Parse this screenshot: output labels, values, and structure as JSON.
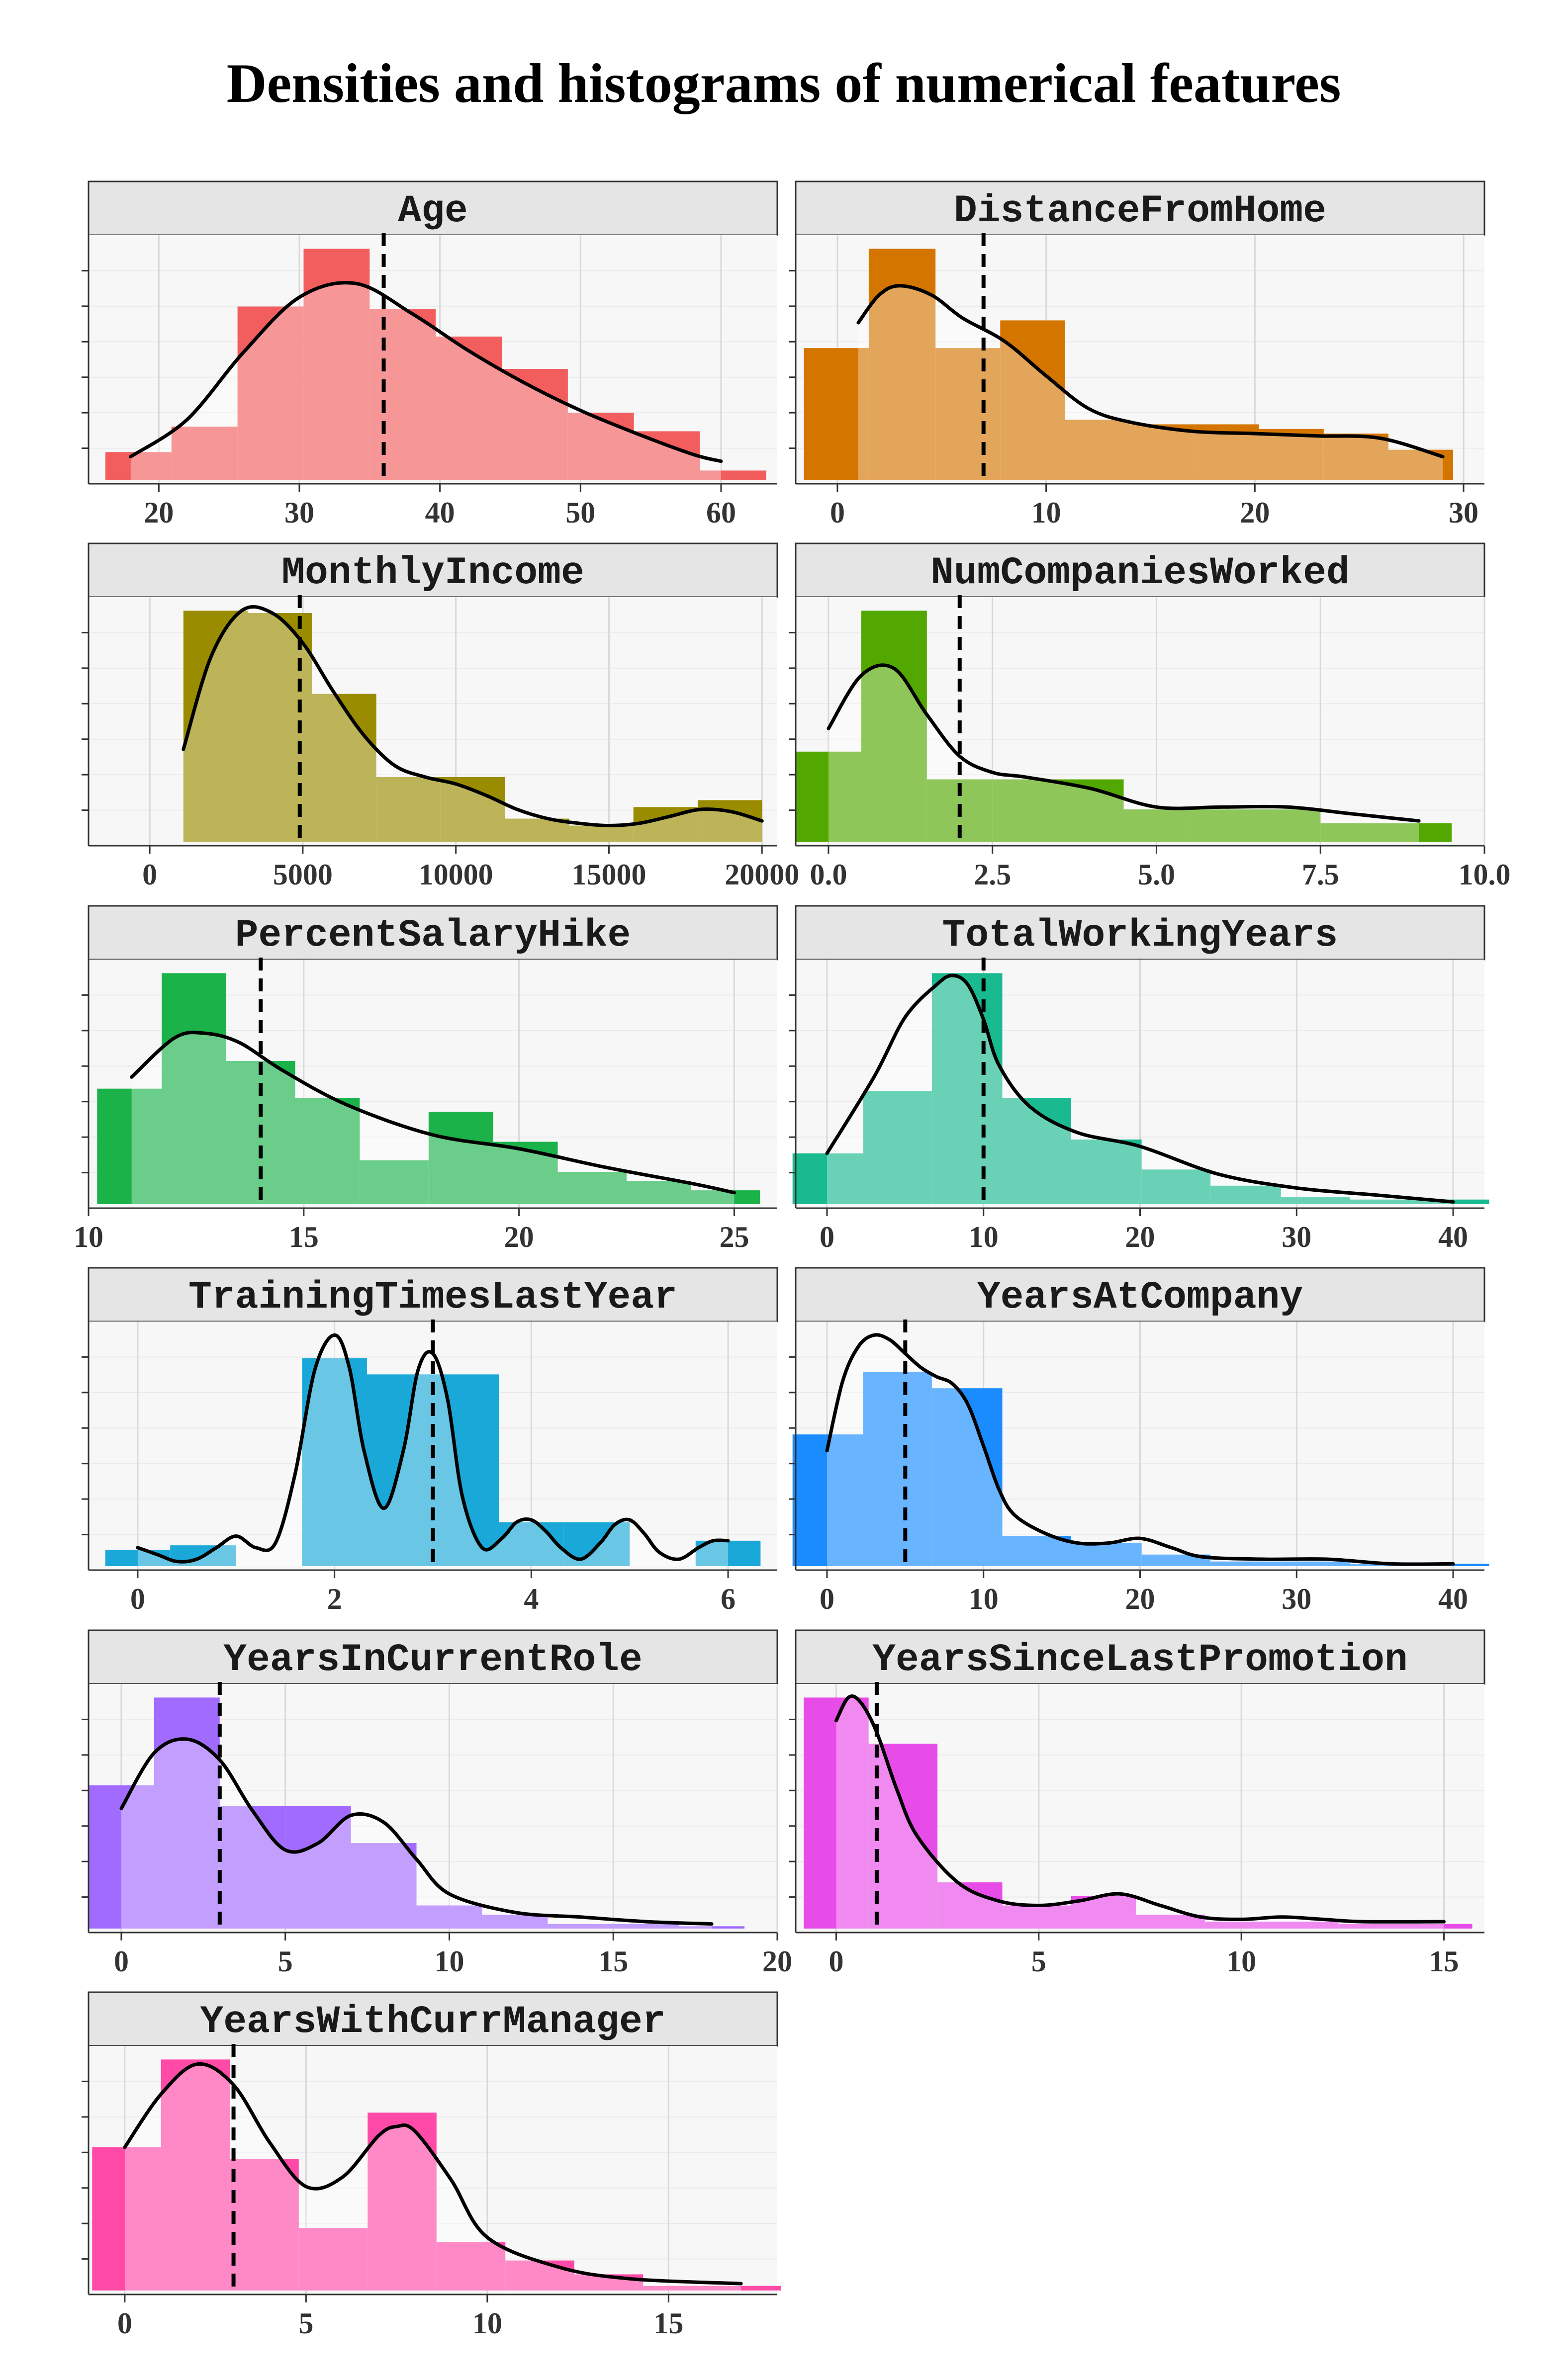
{
  "title": "Densities and histograms of numerical features",
  "colors": {
    "panel_background": "#F7F7F7",
    "strip_background": "#E5E5E5",
    "gridline": "#D9D9D9",
    "density_line": "#000000",
    "median_line": "#000000"
  },
  "chart_data": [
    {
      "type": "histogram",
      "title": "Age",
      "color": "#F25E5E",
      "xlim": [
        15,
        64
      ],
      "x_ticks": [
        20,
        30,
        40,
        50,
        60
      ],
      "x_tick_labels": [
        "20",
        "30",
        "40",
        "50",
        "60"
      ],
      "median": 36,
      "bins": {
        "edges": [
          16.2,
          20.9,
          25.6,
          30.3,
          35.0,
          39.7,
          44.4,
          49.1,
          53.8,
          58.5,
          63.2
        ],
        "values": [
          0.12,
          0.23,
          0.75,
          1.0,
          0.74,
          0.62,
          0.48,
          0.29,
          0.21,
          0.04
        ]
      },
      "density": {
        "x": [
          18,
          22,
          26,
          30,
          34,
          38,
          42,
          46,
          50,
          54,
          58,
          60
        ],
        "y": [
          0.1,
          0.26,
          0.55,
          0.79,
          0.85,
          0.72,
          0.56,
          0.42,
          0.3,
          0.2,
          0.11,
          0.08
        ]
      }
    },
    {
      "type": "histogram",
      "title": "DistanceFromHome",
      "color": "#D47500",
      "xlim": [
        -2,
        31
      ],
      "x_ticks": [
        0,
        10,
        20,
        30
      ],
      "x_tick_labels": [
        "0",
        "10",
        "20",
        "30"
      ],
      "median": 7,
      "bins": {
        "edges": [
          -1.6,
          1.5,
          4.7,
          7.8,
          10.9,
          14.0,
          17.1,
          20.2,
          23.3,
          26.4,
          29.5
        ],
        "values": [
          0.57,
          1.0,
          0.57,
          0.69,
          0.26,
          0.24,
          0.24,
          0.22,
          0.2,
          0.13
        ]
      },
      "density": {
        "x": [
          1.0,
          2.0,
          3.0,
          4.5,
          6,
          8,
          10,
          12,
          14,
          17,
          20,
          23,
          26,
          29
        ],
        "y": [
          0.68,
          0.8,
          0.84,
          0.8,
          0.7,
          0.6,
          0.45,
          0.31,
          0.25,
          0.21,
          0.2,
          0.19,
          0.18,
          0.1
        ]
      }
    },
    {
      "type": "histogram",
      "title": "MonthlyIncome",
      "color": "#9A8C00",
      "xlim": [
        -2000,
        20500
      ],
      "x_ticks": [
        0,
        5000,
        10000,
        15000,
        20000
      ],
      "x_tick_labels": [
        "0",
        "5000",
        "10000",
        "15000",
        "20000"
      ],
      "median": 4900,
      "bins": {
        "edges": [
          -1000,
          1100,
          3200,
          5300,
          7400,
          9500,
          11600,
          13700,
          15800,
          17900,
          20000
        ],
        "values": [
          0.0,
          1.0,
          0.99,
          0.64,
          0.28,
          0.28,
          0.1,
          0.07,
          0.15,
          0.18
        ]
      },
      "density": {
        "x": [
          1100,
          2000,
          3000,
          4000,
          5000,
          6000,
          7000,
          8000,
          9000,
          10000,
          11000,
          12000,
          13000,
          14000,
          15000,
          16000,
          17000,
          18000,
          19000,
          20000
        ],
        "y": [
          0.4,
          0.8,
          1.0,
          0.99,
          0.86,
          0.65,
          0.46,
          0.33,
          0.28,
          0.25,
          0.2,
          0.14,
          0.1,
          0.08,
          0.07,
          0.08,
          0.11,
          0.14,
          0.13,
          0.09
        ]
      }
    },
    {
      "type": "histogram",
      "title": "NumCompaniesWorked",
      "color": "#52A800",
      "xlim": [
        -0.5,
        10
      ],
      "x_ticks": [
        0.0,
        2.5,
        5.0,
        7.5,
        10.0
      ],
      "x_tick_labels": [
        "0.0",
        "2.5",
        "5.0",
        "7.5",
        "10.0"
      ],
      "median": 2,
      "bins": {
        "edges": [
          -0.5,
          0.5,
          1.5,
          2.5,
          3.5,
          4.5,
          5.5,
          6.5,
          7.5,
          8.5,
          9.5
        ],
        "values": [
          0.39,
          1.0,
          0.27,
          0.27,
          0.27,
          0.14,
          0.14,
          0.14,
          0.08,
          0.08
        ]
      },
      "density": {
        "x": [
          0,
          0.5,
          1.0,
          1.5,
          2.0,
          2.5,
          3.0,
          4.0,
          5.0,
          6.0,
          7.0,
          8.0,
          9.0
        ],
        "y": [
          0.49,
          0.72,
          0.75,
          0.55,
          0.37,
          0.3,
          0.28,
          0.23,
          0.15,
          0.15,
          0.15,
          0.12,
          0.09
        ]
      }
    },
    {
      "type": "histogram",
      "title": "PercentSalaryHike",
      "color": "#1BB24A",
      "xlim": [
        10,
        26
      ],
      "x_ticks": [
        10,
        15,
        20,
        25
      ],
      "x_tick_labels": [
        "10",
        "15",
        "20",
        "25"
      ],
      "median": 14,
      "bins": {
        "edges": [
          10.2,
          11.7,
          13.2,
          14.8,
          16.3,
          17.9,
          19.4,
          20.9,
          22.5,
          24.0,
          25.6
        ],
        "values": [
          0.5,
          1.0,
          0.62,
          0.46,
          0.19,
          0.4,
          0.27,
          0.14,
          0.1,
          0.06
        ]
      },
      "density": {
        "x": [
          11,
          12,
          12.7,
          13.5,
          14.5,
          16,
          18,
          20,
          22,
          24,
          25
        ],
        "y": [
          0.55,
          0.72,
          0.74,
          0.7,
          0.58,
          0.43,
          0.3,
          0.24,
          0.16,
          0.09,
          0.05
        ]
      }
    },
    {
      "type": "histogram",
      "title": "TotalWorkingYears",
      "color": "#1ABA90",
      "xlim": [
        -2,
        42
      ],
      "x_ticks": [
        0,
        10,
        20,
        30,
        40
      ],
      "x_tick_labels": [
        "0",
        "10",
        "20",
        "30",
        "40"
      ],
      "median": 10,
      "bins": {
        "edges": [
          -2.2,
          2.3,
          6.7,
          11.2,
          15.6,
          20.1,
          24.5,
          29.0,
          33.4,
          37.9,
          42.3
        ],
        "values": [
          0.22,
          0.49,
          1.0,
          0.46,
          0.28,
          0.15,
          0.08,
          0.03,
          0.02,
          0.02
        ]
      },
      "density": {
        "x": [
          0,
          3,
          5,
          7,
          8,
          9,
          10,
          11,
          13,
          16,
          20,
          25,
          30,
          35,
          40
        ],
        "y": [
          0.22,
          0.55,
          0.81,
          0.95,
          0.99,
          0.95,
          0.8,
          0.6,
          0.42,
          0.31,
          0.25,
          0.13,
          0.07,
          0.04,
          0.01
        ]
      }
    },
    {
      "type": "histogram",
      "title": "TrainingTimesLastYear",
      "color": "#1AA8D8",
      "xlim": [
        -0.5,
        6.5
      ],
      "x_ticks": [
        0,
        2,
        4,
        6
      ],
      "x_tick_labels": [
        "0",
        "2",
        "4",
        "6"
      ],
      "median": 3,
      "bins": {
        "edges": [
          -0.33,
          0.33,
          1.0,
          1.67,
          2.33,
          3.0,
          3.67,
          4.33,
          5.0,
          5.67,
          6.33
        ],
        "values": [
          0.07,
          0.09,
          0.0,
          0.9,
          0.83,
          0.83,
          0.19,
          0.19,
          0.0,
          0.11
        ]
      },
      "density": {
        "x": [
          0,
          0.2,
          0.4,
          0.6,
          0.8,
          1.0,
          1.2,
          1.4,
          1.6,
          1.8,
          2.0,
          2.15,
          2.3,
          2.5,
          2.7,
          2.85,
          3.0,
          3.15,
          3.3,
          3.5,
          3.7,
          3.85,
          4.0,
          4.15,
          4.3,
          4.5,
          4.7,
          4.85,
          5.0,
          5.15,
          5.3,
          5.5,
          5.7,
          5.85,
          6.0
        ],
        "y": [
          0.08,
          0.05,
          0.02,
          0.03,
          0.08,
          0.13,
          0.08,
          0.1,
          0.4,
          0.85,
          1.0,
          0.86,
          0.5,
          0.25,
          0.5,
          0.85,
          0.92,
          0.72,
          0.3,
          0.08,
          0.12,
          0.19,
          0.2,
          0.15,
          0.08,
          0.03,
          0.1,
          0.18,
          0.2,
          0.14,
          0.06,
          0.03,
          0.08,
          0.11,
          0.11
        ]
      }
    },
    {
      "type": "histogram",
      "title": "YearsAtCompany",
      "color": "#1A8CFF",
      "xlim": [
        -2,
        42
      ],
      "x_ticks": [
        0,
        10,
        20,
        30,
        40
      ],
      "x_tick_labels": [
        "0",
        "10",
        "20",
        "30",
        "40"
      ],
      "median": 5,
      "bins": {
        "edges": [
          -2.2,
          2.3,
          6.7,
          11.2,
          15.6,
          20.1,
          24.5,
          29.0,
          33.4,
          37.9,
          42.3
        ],
        "values": [
          0.57,
          0.84,
          0.77,
          0.13,
          0.1,
          0.05,
          0.02,
          0.02,
          0.01,
          0.01
        ]
      },
      "density": {
        "x": [
          0,
          1,
          2,
          3,
          4,
          5,
          6,
          7,
          8,
          9,
          10,
          11,
          12,
          14,
          16,
          18,
          20,
          22,
          24,
          28,
          32,
          36,
          40
        ],
        "y": [
          0.5,
          0.8,
          0.95,
          1.0,
          0.98,
          0.92,
          0.86,
          0.82,
          0.79,
          0.7,
          0.52,
          0.33,
          0.22,
          0.14,
          0.1,
          0.1,
          0.12,
          0.08,
          0.04,
          0.03,
          0.03,
          0.01,
          0.01
        ]
      }
    },
    {
      "type": "histogram",
      "title": "YearsInCurrentRole",
      "color": "#A26BFF",
      "xlim": [
        -1,
        20
      ],
      "x_ticks": [
        0,
        5,
        10,
        15,
        20
      ],
      "x_tick_labels": [
        "0",
        "5",
        "10",
        "15",
        "20"
      ],
      "median": 3,
      "bins": {
        "edges": [
          -1.0,
          1.0,
          3.0,
          5.0,
          7.0,
          9.0,
          11.0,
          13.0,
          15.0,
          17.0,
          19.0
        ],
        "values": [
          0.62,
          1.0,
          0.53,
          0.53,
          0.37,
          0.1,
          0.06,
          0.02,
          0.02,
          0.01
        ]
      },
      "density": {
        "x": [
          0,
          1,
          2,
          3,
          4,
          5,
          6,
          7,
          8,
          9,
          10,
          12,
          14,
          16,
          18
        ],
        "y": [
          0.52,
          0.76,
          0.82,
          0.73,
          0.51,
          0.34,
          0.37,
          0.49,
          0.46,
          0.3,
          0.15,
          0.07,
          0.05,
          0.03,
          0.02
        ]
      }
    },
    {
      "type": "histogram",
      "title": "YearsSinceLastPromotion",
      "color": "#E84CE8",
      "xlim": [
        -1,
        16
      ],
      "x_ticks": [
        0,
        5,
        10,
        15
      ],
      "x_tick_labels": [
        "0",
        "5",
        "10",
        "15"
      ],
      "median": 1,
      "bins": {
        "edges": [
          -0.8,
          0.8,
          2.5,
          4.1,
          5.8,
          7.4,
          9.1,
          10.7,
          12.4,
          14.0,
          15.7
        ],
        "values": [
          1.0,
          0.8,
          0.2,
          0.1,
          0.14,
          0.06,
          0.03,
          0.03,
          0.02,
          0.02
        ]
      },
      "density": {
        "x": [
          0,
          0.3,
          0.6,
          1.0,
          1.5,
          2,
          3,
          4,
          5,
          6,
          7,
          8,
          9,
          10,
          11,
          12,
          13,
          15
        ],
        "y": [
          0.9,
          1.0,
          0.98,
          0.85,
          0.6,
          0.4,
          0.2,
          0.12,
          0.1,
          0.12,
          0.15,
          0.1,
          0.05,
          0.04,
          0.05,
          0.04,
          0.03,
          0.03
        ]
      }
    },
    {
      "type": "histogram",
      "title": "YearsWithCurrManager",
      "color": "#FF4AA8",
      "xlim": [
        -1,
        18
      ],
      "x_ticks": [
        0,
        5,
        10,
        15
      ],
      "x_tick_labels": [
        "0",
        "5",
        "10",
        "15"
      ],
      "median": 3,
      "bins": {
        "edges": [
          -0.9,
          1.0,
          2.9,
          4.8,
          6.7,
          8.6,
          10.5,
          12.4,
          14.3,
          16.2,
          18.1
        ],
        "values": [
          0.62,
          1.0,
          0.57,
          0.27,
          0.77,
          0.21,
          0.13,
          0.07,
          0.02,
          0.02
        ]
      },
      "density": {
        "x": [
          0,
          1,
          2,
          3,
          4,
          5,
          6,
          7,
          7.5,
          8,
          9,
          10,
          12,
          14,
          17
        ],
        "y": [
          0.62,
          0.85,
          0.98,
          0.89,
          0.64,
          0.45,
          0.49,
          0.67,
          0.71,
          0.69,
          0.48,
          0.23,
          0.1,
          0.05,
          0.03
        ]
      }
    }
  ]
}
